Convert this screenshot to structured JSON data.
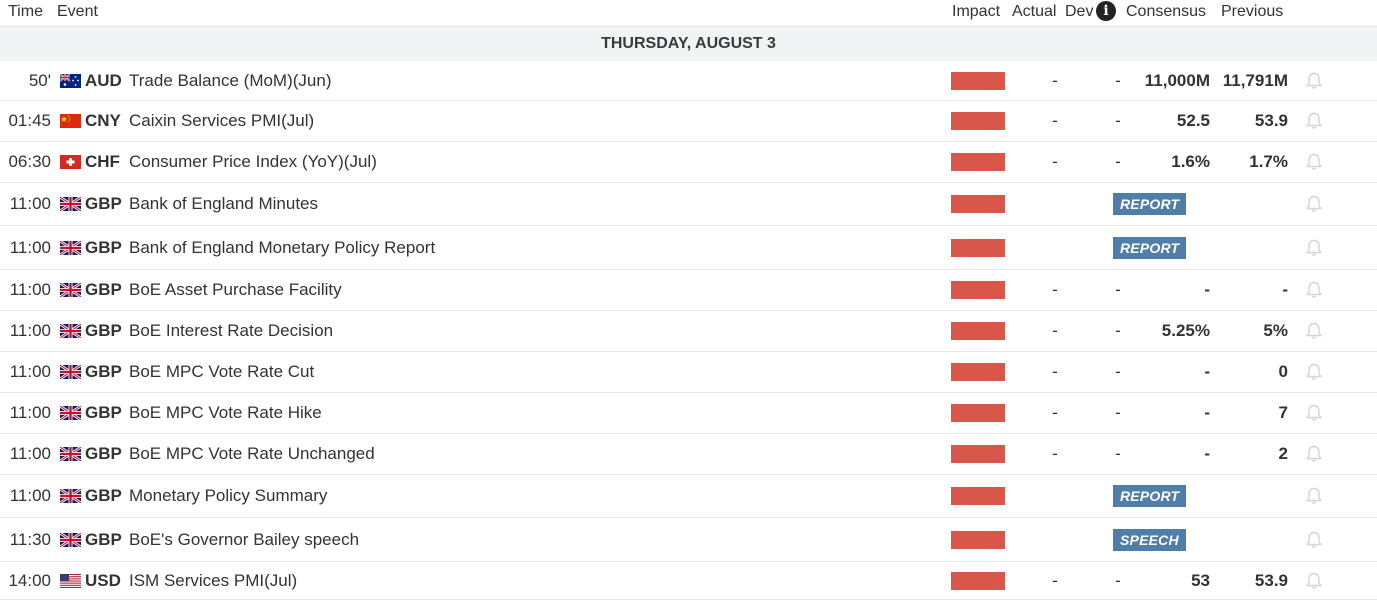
{
  "header": {
    "time": "Time",
    "event": "Event",
    "impact": "Impact",
    "actual": "Actual",
    "dev": "Dev",
    "info_icon": "i",
    "consensus": "Consensus",
    "previous": "Previous"
  },
  "date_label": "THURSDAY, AUGUST 3",
  "impact_color": "#d9574a",
  "badge_color": "#4f7eaa",
  "rows": [
    {
      "time": "50'",
      "currency": "AUD",
      "flag": "au-flag-icon",
      "event": "Trade Balance (MoM)(Jun)",
      "actual": "-",
      "dev": "-",
      "consensus": "11,000M",
      "previous": "11,791M"
    },
    {
      "time": "01:45",
      "currency": "CNY",
      "flag": "cn-flag-icon",
      "event": "Caixin Services PMI(Jul)",
      "actual": "-",
      "dev": "-",
      "consensus": "52.5",
      "previous": "53.9"
    },
    {
      "time": "06:30",
      "currency": "CHF",
      "flag": "ch-flag-icon",
      "event": "Consumer Price Index (YoY)(Jul)",
      "actual": "-",
      "dev": "-",
      "consensus": "1.6%",
      "previous": "1.7%"
    },
    {
      "time": "11:00",
      "currency": "GBP",
      "flag": "gb-flag-icon",
      "event": "Bank of England Minutes",
      "badge": "REPORT"
    },
    {
      "time": "11:00",
      "currency": "GBP",
      "flag": "gb-flag-icon",
      "event": "Bank of England Monetary Policy Report",
      "badge": "REPORT"
    },
    {
      "time": "11:00",
      "currency": "GBP",
      "flag": "gb-flag-icon",
      "event": "BoE Asset Purchase Facility",
      "actual": "-",
      "dev": "-",
      "consensus": "-",
      "previous": "-"
    },
    {
      "time": "11:00",
      "currency": "GBP",
      "flag": "gb-flag-icon",
      "event": "BoE Interest Rate Decision",
      "actual": "-",
      "dev": "-",
      "consensus": "5.25%",
      "previous": "5%"
    },
    {
      "time": "11:00",
      "currency": "GBP",
      "flag": "gb-flag-icon",
      "event": "BoE MPC Vote Rate Cut",
      "actual": "-",
      "dev": "-",
      "consensus": "-",
      "previous": "0"
    },
    {
      "time": "11:00",
      "currency": "GBP",
      "flag": "gb-flag-icon",
      "event": "BoE MPC Vote Rate Hike",
      "actual": "-",
      "dev": "-",
      "consensus": "-",
      "previous": "7"
    },
    {
      "time": "11:00",
      "currency": "GBP",
      "flag": "gb-flag-icon",
      "event": "BoE MPC Vote Rate Unchanged",
      "actual": "-",
      "dev": "-",
      "consensus": "-",
      "previous": "2"
    },
    {
      "time": "11:00",
      "currency": "GBP",
      "flag": "gb-flag-icon",
      "event": "Monetary Policy Summary",
      "badge": "REPORT"
    },
    {
      "time": "11:30",
      "currency": "GBP",
      "flag": "gb-flag-icon",
      "event": "BoE's Governor Bailey speech",
      "badge": "SPEECH"
    },
    {
      "time": "14:00",
      "currency": "USD",
      "flag": "us-flag-icon",
      "event": "ISM Services PMI(Jul)",
      "actual": "-",
      "dev": "-",
      "consensus": "53",
      "previous": "53.9"
    }
  ]
}
